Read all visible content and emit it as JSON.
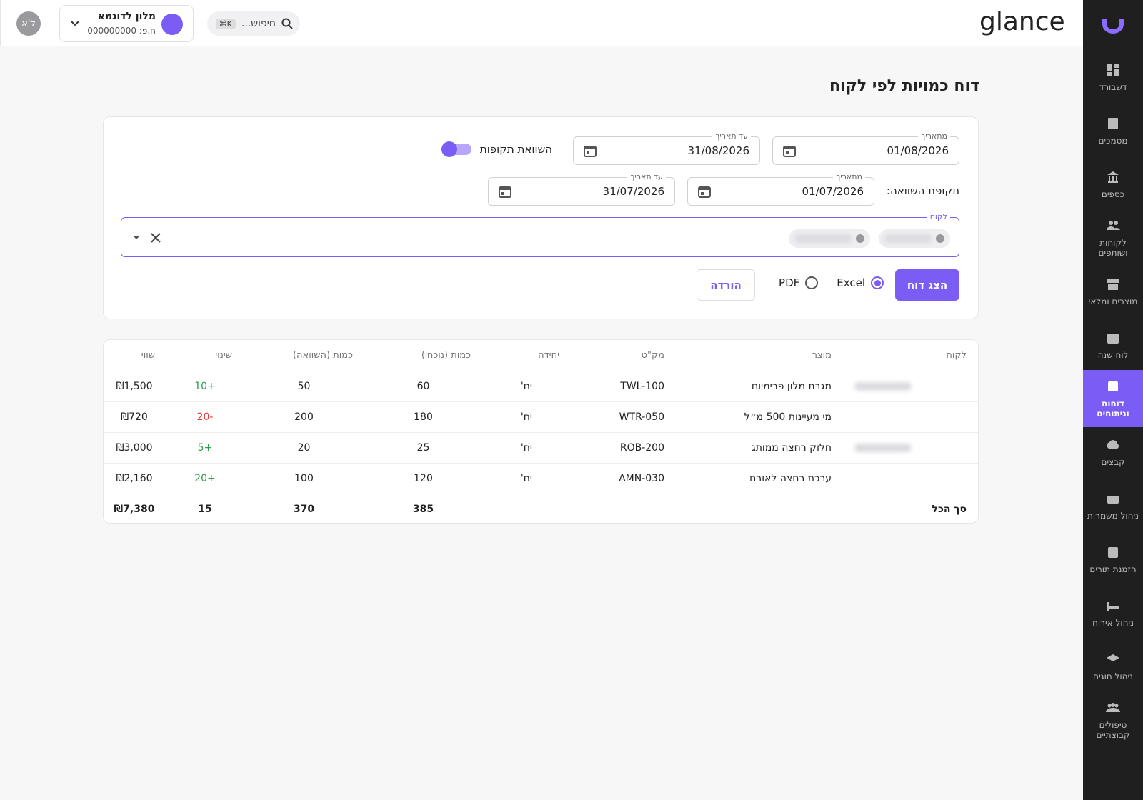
{
  "sidebar": {
    "items": [
      "דשבורד",
      "מסמכים",
      "כספים",
      "לקוחות ושותפים",
      "מוצרים ומלאי",
      "לוח שנה",
      "דוחות וניתוחים",
      "קבצים",
      "ניהול משמרות",
      "הזמנת תורים",
      "ניהול אירוח",
      "ניהול חוגים",
      "טיפולים קבוצתיים"
    ]
  },
  "topbar": {
    "logo": "glance",
    "search": {
      "placeholder": "חיפוש...",
      "shortcut": "K⌘"
    },
    "business": {
      "name": "מלון לדוגמא",
      "id": "ח.פ: 000000000"
    },
    "avatar": "ל'א"
  },
  "header": {
    "title": "דוח כמויות לפי לקוח"
  },
  "filters": {
    "from": {
      "label": "מתאריך",
      "value": "01/08/2026"
    },
    "to": {
      "label": "עד תאריך",
      "value": "31/08/2026"
    },
    "compare_toggle": "השוואת תקופות",
    "compare_label": "תקופת השוואה:",
    "compare_from": {
      "label": "מתאריך",
      "value": "01/07/2026"
    },
    "compare_to": {
      "label": "עד תאריך",
      "value": "31/07/2026"
    },
    "customer_label": "לקוח",
    "show_report": "הצג דוח",
    "formats": [
      "Excel",
      "PDF"
    ],
    "download": "הורדה"
  },
  "table": {
    "columns": [
      "לקוח",
      "מוצר",
      "מק\"ט",
      "יחידה",
      "כמות (נוכחי)",
      "כמות (השוואה)",
      "שינוי",
      "שווי"
    ],
    "rows": [
      {
        "product": "מגבת מלון פרימיום",
        "sku": "TWL-100",
        "unit": "יח'",
        "current": 60,
        "compare": 50,
        "change": "+10",
        "value": "₪1,500"
      },
      {
        "product": "מי מעיינות 500 מ״ל",
        "sku": "WTR-050",
        "unit": "יח'",
        "current": 180,
        "compare": 200,
        "change": "-20",
        "value": "₪720"
      },
      {
        "product": "חלוק רחצה ממותג",
        "sku": "ROB-200",
        "unit": "יח'",
        "current": 25,
        "compare": 20,
        "change": "+5",
        "value": "₪3,000"
      },
      {
        "product": "ערכת רחצה לאורח",
        "sku": "AMN-030",
        "unit": "יח'",
        "current": 120,
        "compare": 100,
        "change": "+20",
        "value": "₪2,160"
      }
    ],
    "total": {
      "label": "סך הכל",
      "current": 385,
      "compare": 370,
      "change": 15,
      "value": "₪7,380"
    }
  }
}
